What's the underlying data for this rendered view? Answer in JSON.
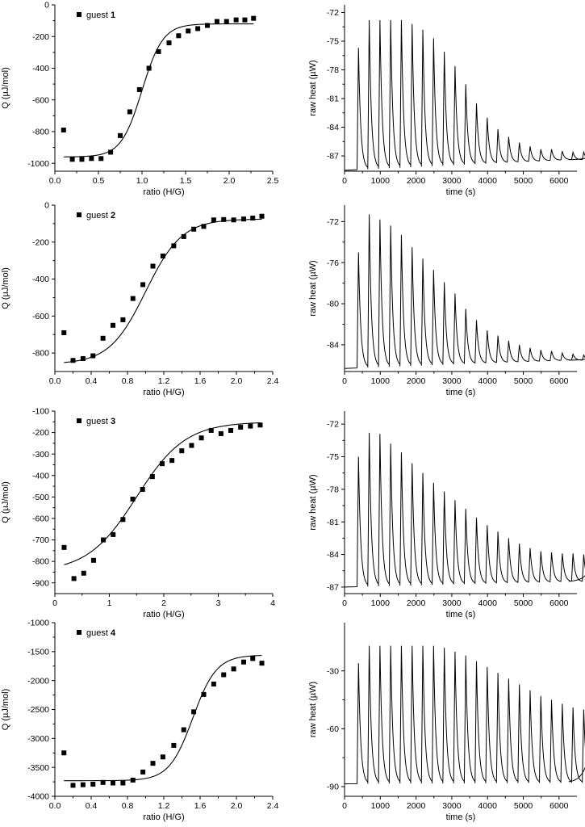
{
  "chart_data": [
    {
      "type": "scatter",
      "panel": "titration-1",
      "xlabel": "ratio (H/G)",
      "ylabel": "Q (µJ/mol)",
      "xlim": [
        0,
        2.5
      ],
      "ylim": [
        -1050,
        0
      ],
      "xticks": [
        0,
        0.5,
        1,
        1.5,
        2,
        2.5
      ],
      "xtick_labels": [
        "0.0",
        "0.5",
        "1.0",
        "1.5",
        "2.0",
        "2.5"
      ],
      "yticks": [
        0,
        -200,
        -400,
        -600,
        -800,
        -1000
      ],
      "ytick_labels": [
        "0",
        "-200",
        "-400",
        "-600",
        "-800",
        "-1000"
      ],
      "legend": {
        "prefix": "guest",
        "number": "1",
        "position": "top-left"
      },
      "points": {
        "x": [
          0.1,
          0.2,
          0.31,
          0.42,
          0.53,
          0.64,
          0.75,
          0.86,
          0.97,
          1.08,
          1.19,
          1.31,
          1.42,
          1.53,
          1.64,
          1.75,
          1.86,
          1.97,
          2.08,
          2.18,
          2.28
        ],
        "y": [
          -790,
          -975,
          -975,
          -970,
          -970,
          -930,
          -825,
          -675,
          -535,
          -400,
          -295,
          -240,
          -195,
          -165,
          -150,
          -130,
          -105,
          -105,
          -95,
          -95,
          -85
        ]
      },
      "fit": {
        "y_start": -960,
        "y_end": -120,
        "midpoint": 1.0,
        "width": 0.12,
        "x_range": [
          0.1,
          2.28
        ]
      }
    },
    {
      "type": "line",
      "panel": "raw-heat-1",
      "xlabel": "time (s)",
      "ylabel": "raw heat (µW)",
      "xlim": [
        0,
        6500
      ],
      "ylim": [
        -88.6,
        -71.2
      ],
      "xticks": [
        0,
        1000,
        2000,
        3000,
        4000,
        5000,
        6000
      ],
      "xtick_labels": [
        "0",
        "1000",
        "2000",
        "3000",
        "4000",
        "5000",
        "6000"
      ],
      "yticks": [
        -72,
        -75,
        -78,
        -81,
        -84,
        -87
      ],
      "ytick_labels": [
        "-72",
        "-75",
        "-78",
        "-81",
        "-84",
        "-87"
      ],
      "trace": {
        "baseline_start": -88.5,
        "baseline_end": -87.4,
        "start_time": 350,
        "interval": 300,
        "peaks": [
          -75.7,
          -72.8,
          -72.8,
          -72.8,
          -72.8,
          -73.2,
          -73.8,
          -74.7,
          -76.1,
          -77.6,
          -79.5,
          -81.5,
          -83.0,
          -84.2,
          -85.0,
          -85.6,
          -86.0,
          -86.3,
          -86.3,
          -86.5,
          -86.6,
          -86.6,
          -86.7
        ]
      }
    },
    {
      "type": "scatter",
      "panel": "titration-2",
      "xlabel": "ratio (H/G)",
      "ylabel": "Q (µJ/mol)",
      "xlim": [
        0,
        2.4
      ],
      "ylim": [
        -900,
        0
      ],
      "xticks": [
        0,
        0.4,
        0.8,
        1.2,
        1.6,
        2.0,
        2.4
      ],
      "xtick_labels": [
        "0.0",
        "0.4",
        "0.8",
        "1.2",
        "1.6",
        "2.0",
        "2.4"
      ],
      "yticks": [
        0,
        -200,
        -400,
        -600,
        -800
      ],
      "ytick_labels": [
        "0",
        "-200",
        "-400",
        "-600",
        "-800"
      ],
      "legend": {
        "prefix": "guest",
        "number": "2",
        "position": "top-left"
      },
      "points": {
        "x": [
          0.1,
          0.2,
          0.31,
          0.42,
          0.53,
          0.64,
          0.75,
          0.86,
          0.97,
          1.08,
          1.19,
          1.31,
          1.42,
          1.53,
          1.64,
          1.75,
          1.86,
          1.97,
          2.08,
          2.18,
          2.28
        ],
        "y": [
          -690,
          -840,
          -830,
          -815,
          -720,
          -650,
          -620,
          -505,
          -430,
          -330,
          -275,
          -220,
          -170,
          -130,
          -115,
          -80,
          -78,
          -80,
          -75,
          -70,
          -60
        ]
      },
      "fit": {
        "y_start": -860,
        "y_end": -75,
        "midpoint": 1.0,
        "width": 0.2,
        "x_range": [
          0.1,
          2.28
        ]
      }
    },
    {
      "type": "line",
      "panel": "raw-heat-2",
      "xlabel": "time (s)",
      "ylabel": "raw heat (µW)",
      "xlim": [
        0,
        6500
      ],
      "ylim": [
        -86.6,
        -70.4
      ],
      "xticks": [
        0,
        1000,
        2000,
        3000,
        4000,
        5000,
        6000
      ],
      "xtick_labels": [
        "0",
        "1000",
        "2000",
        "3000",
        "4000",
        "5000",
        "6000"
      ],
      "yticks": [
        -72,
        -76,
        -80,
        -84
      ],
      "ytick_labels": [
        "-72",
        "-76",
        "-80",
        "-84"
      ],
      "trace": {
        "baseline_start": -86.3,
        "baseline_end": -85.5,
        "start_time": 350,
        "interval": 300,
        "peaks": [
          -75.0,
          -71.3,
          -71.8,
          -72.4,
          -73.3,
          -74.5,
          -75.6,
          -76.7,
          -77.9,
          -79.0,
          -80.5,
          -81.6,
          -82.6,
          -83.1,
          -83.6,
          -84.0,
          -84.3,
          -84.5,
          -84.6,
          -84.8,
          -84.9,
          -85.0,
          -85.1
        ]
      }
    },
    {
      "type": "scatter",
      "panel": "titration-3",
      "xlabel": "ratio (H/G)",
      "ylabel": "Q (µJ/mol)",
      "xlim": [
        0,
        4
      ],
      "ylim": [
        -950,
        -100
      ],
      "xticks": [
        0,
        1,
        2,
        3,
        4
      ],
      "xtick_labels": [
        "0",
        "1",
        "2",
        "3",
        "4"
      ],
      "yticks": [
        -100,
        -200,
        -300,
        -400,
        -500,
        -600,
        -700,
        -800,
        -900
      ],
      "ytick_labels": [
        "-100",
        "-200",
        "-300",
        "-400",
        "-500",
        "-600",
        "-700",
        "-800",
        "-900"
      ],
      "legend": {
        "prefix": "guest",
        "number": "3",
        "position": "top-left"
      },
      "points": {
        "x": [
          0.17,
          0.35,
          0.53,
          0.71,
          0.89,
          1.07,
          1.25,
          1.43,
          1.61,
          1.79,
          1.97,
          2.15,
          2.33,
          2.51,
          2.69,
          2.87,
          3.05,
          3.23,
          3.41,
          3.59,
          3.77
        ],
        "y": [
          -735,
          -880,
          -855,
          -795,
          -700,
          -675,
          -605,
          -510,
          -465,
          -405,
          -345,
          -330,
          -285,
          -260,
          -225,
          -190,
          -205,
          -190,
          -175,
          -170,
          -165
        ]
      },
      "fit": {
        "y_start": -850,
        "y_end": -150,
        "midpoint": 1.5,
        "width": 0.45,
        "x_range": [
          0.17,
          3.77
        ]
      }
    },
    {
      "type": "line",
      "panel": "raw-heat-3",
      "xlabel": "time (s)",
      "ylabel": "raw heat (µW)",
      "xlim": [
        0,
        6500
      ],
      "ylim": [
        -87.6,
        -70.8
      ],
      "xticks": [
        0,
        1000,
        2000,
        3000,
        4000,
        5000,
        6000
      ],
      "xtick_labels": [
        "0",
        "1000",
        "2000",
        "3000",
        "4000",
        "5000",
        "6000"
      ],
      "yticks": [
        -72,
        -75,
        -78,
        -81,
        -84,
        -87
      ],
      "ytick_labels": [
        "-72",
        "-75",
        "-78",
        "-81",
        "-84",
        "-87"
      ],
      "trace": {
        "baseline_start": -87.0,
        "baseline_end": -86.5,
        "start_time": 350,
        "interval": 300,
        "peaks": [
          -75.0,
          -72.8,
          -72.9,
          -73.8,
          -74.6,
          -75.6,
          -76.5,
          -77.4,
          -78.2,
          -79.0,
          -79.8,
          -80.6,
          -81.3,
          -81.9,
          -82.5,
          -83.0,
          -83.4,
          -83.7,
          -83.8,
          -83.9,
          -83.9,
          -84.0,
          -84.0
        ]
      }
    },
    {
      "type": "scatter",
      "panel": "titration-4",
      "xlabel": "ratio (H/G)",
      "ylabel": "Q (µJ/mol)",
      "xlim": [
        0,
        2.4
      ],
      "ylim": [
        -4000,
        -1000
      ],
      "xticks": [
        0,
        0.4,
        0.8,
        1.2,
        1.6,
        2.0,
        2.4
      ],
      "xtick_labels": [
        "0.0",
        "0.4",
        "0.8",
        "1.2",
        "1.6",
        "2.0",
        "2.4"
      ],
      "yticks": [
        -1000,
        -1500,
        -2000,
        -2500,
        -3000,
        -3500,
        -4000
      ],
      "ytick_labels": [
        "-1000",
        "-1500",
        "-2000",
        "-2500",
        "-3000",
        "-3500",
        "-4000"
      ],
      "legend": {
        "prefix": "guest",
        "number": "4",
        "position": "top-left"
      },
      "points": {
        "x": [
          0.1,
          0.2,
          0.31,
          0.42,
          0.53,
          0.64,
          0.75,
          0.86,
          0.97,
          1.08,
          1.19,
          1.31,
          1.42,
          1.53,
          1.64,
          1.75,
          1.86,
          1.97,
          2.08,
          2.18,
          2.28
        ],
        "y": [
          -3250,
          -3810,
          -3800,
          -3790,
          -3760,
          -3770,
          -3770,
          -3720,
          -3580,
          -3430,
          -3320,
          -3120,
          -2850,
          -2540,
          -2240,
          -2060,
          -1900,
          -1800,
          -1680,
          -1620,
          -1700
        ]
      },
      "fit": {
        "y_start": -3730,
        "y_end": -1560,
        "midpoint": 1.52,
        "width": 0.13,
        "x_range": [
          0.1,
          2.28
        ]
      }
    },
    {
      "type": "line",
      "panel": "raw-heat-4",
      "xlabel": "time (s)",
      "ylabel": "raw heat (µW)",
      "xlim": [
        0,
        6500
      ],
      "ylim": [
        -95,
        -5
      ],
      "xticks": [
        0,
        1000,
        2000,
        3000,
        4000,
        5000,
        6000
      ],
      "xtick_labels": [
        "0",
        "1000",
        "2000",
        "3000",
        "4000",
        "5000",
        "6000"
      ],
      "yticks": [
        -30,
        -60,
        -90
      ],
      "ytick_labels": [
        "-30",
        "-60",
        "-90"
      ],
      "trace": {
        "baseline_start": -88.5,
        "baseline_end": -88.0,
        "start_time": 350,
        "interval": 300,
        "peaks": [
          -26,
          -17,
          -17,
          -17,
          -17,
          -17,
          -17,
          -17,
          -18,
          -20,
          -22,
          -25,
          -28,
          -31,
          -34,
          -37,
          -40,
          -43,
          -45,
          -47,
          -49,
          -50,
          -52
        ]
      }
    }
  ]
}
